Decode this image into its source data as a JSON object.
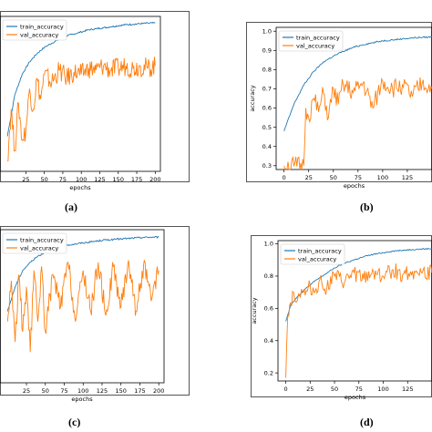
{
  "colors": {
    "train": "#1f77b4",
    "val": "#ff7f0e"
  },
  "chart_data": [
    {
      "type": "line",
      "caption": "(a)",
      "xlabel": "epochs",
      "ylabel": "",
      "xticks": [
        25,
        50,
        75,
        100,
        125,
        150,
        175,
        200
      ],
      "yticks": [],
      "legend": "top-left",
      "series": [
        {
          "name": "train_accuracy",
          "x": [
            0,
            10,
            20,
            30,
            40,
            50,
            60,
            70,
            80,
            90,
            100,
            110,
            120,
            130,
            140,
            150,
            160,
            170,
            180,
            190,
            200
          ],
          "values": [
            0.42,
            0.62,
            0.72,
            0.78,
            0.82,
            0.85,
            0.87,
            0.89,
            0.905,
            0.915,
            0.925,
            0.935,
            0.94,
            0.945,
            0.95,
            0.955,
            0.96,
            0.962,
            0.965,
            0.967,
            0.968
          ]
        },
        {
          "name": "val_accuracy",
          "x": [
            0,
            5,
            10,
            15,
            20,
            25,
            30,
            35,
            40,
            45,
            50,
            60,
            70,
            80,
            90,
            100,
            110,
            120,
            130,
            140,
            150,
            160,
            170,
            180,
            190,
            200
          ],
          "values": [
            0.3,
            0.55,
            0.35,
            0.58,
            0.4,
            0.45,
            0.65,
            0.55,
            0.7,
            0.6,
            0.72,
            0.68,
            0.74,
            0.7,
            0.73,
            0.72,
            0.75,
            0.74,
            0.76,
            0.74,
            0.75,
            0.76,
            0.75,
            0.76,
            0.75,
            0.76
          ]
        }
      ]
    },
    {
      "type": "line",
      "caption": "(b)",
      "xlabel": "epochs",
      "ylabel": "accuracy",
      "xticks": [
        0,
        25,
        50,
        75,
        100,
        125
      ],
      "yticks": [
        0.3,
        0.4,
        0.5,
        0.6,
        0.7,
        0.8,
        0.9,
        1.0
      ],
      "ylim": [
        0.28,
        1.02
      ],
      "legend": "top-left",
      "series": [
        {
          "name": "train_accuracy",
          "x": [
            0,
            10,
            20,
            30,
            40,
            50,
            60,
            70,
            80,
            90,
            100,
            110,
            120,
            130,
            140,
            150
          ],
          "values": [
            0.48,
            0.62,
            0.72,
            0.79,
            0.84,
            0.87,
            0.895,
            0.915,
            0.93,
            0.94,
            0.95,
            0.955,
            0.96,
            0.965,
            0.968,
            0.97
          ]
        },
        {
          "name": "val_accuracy",
          "x": [
            0,
            10,
            20,
            22,
            25,
            30,
            35,
            40,
            45,
            50,
            55,
            60,
            70,
            80,
            90,
            100,
            110,
            120,
            130,
            140,
            150
          ],
          "values": [
            0.3,
            0.3,
            0.3,
            0.6,
            0.55,
            0.65,
            0.58,
            0.68,
            0.55,
            0.7,
            0.62,
            0.72,
            0.68,
            0.73,
            0.6,
            0.74,
            0.7,
            0.72,
            0.66,
            0.73,
            0.7
          ]
        }
      ]
    },
    {
      "type": "line",
      "caption": "(c)",
      "xlabel": "epochs",
      "ylabel": "",
      "xticks": [
        25,
        50,
        75,
        100,
        125,
        150,
        175,
        200
      ],
      "yticks": [],
      "legend": "top-left",
      "series": [
        {
          "name": "train_accuracy",
          "x": [
            0,
            10,
            20,
            30,
            40,
            50,
            60,
            70,
            80,
            90,
            100,
            110,
            120,
            130,
            140,
            150,
            160,
            170,
            180,
            190,
            200
          ],
          "values": [
            0.6,
            0.72,
            0.8,
            0.84,
            0.87,
            0.89,
            0.905,
            0.915,
            0.925,
            0.93,
            0.935,
            0.94,
            0.945,
            0.95,
            0.952,
            0.955,
            0.957,
            0.96,
            0.962,
            0.963,
            0.964
          ]
        },
        {
          "name": "val_accuracy",
          "x": [
            0,
            5,
            10,
            15,
            20,
            25,
            30,
            35,
            40,
            45,
            50,
            60,
            70,
            80,
            90,
            100,
            110,
            120,
            130,
            140,
            150,
            160,
            170,
            180,
            190,
            200
          ],
          "values": [
            0.55,
            0.75,
            0.45,
            0.78,
            0.5,
            0.72,
            0.4,
            0.8,
            0.55,
            0.82,
            0.5,
            0.78,
            0.62,
            0.84,
            0.55,
            0.8,
            0.6,
            0.84,
            0.58,
            0.82,
            0.62,
            0.85,
            0.6,
            0.83,
            0.65,
            0.8
          ]
        }
      ]
    },
    {
      "type": "line",
      "caption": "(d)",
      "xlabel": "epochs",
      "ylabel": "accuracy",
      "xticks": [
        0,
        25,
        50,
        75,
        100,
        125
      ],
      "yticks": [
        0.2,
        0.4,
        0.6,
        0.8,
        1.0
      ],
      "ylim": [
        0.15,
        1.02
      ],
      "legend": "top-left",
      "series": [
        {
          "name": "train_accuracy",
          "x": [
            0,
            5,
            10,
            20,
            30,
            40,
            50,
            60,
            70,
            80,
            90,
            100,
            110,
            120,
            130,
            140,
            150
          ],
          "values": [
            0.52,
            0.62,
            0.66,
            0.72,
            0.77,
            0.81,
            0.85,
            0.88,
            0.9,
            0.92,
            0.935,
            0.945,
            0.955,
            0.96,
            0.965,
            0.968,
            0.97
          ]
        },
        {
          "name": "val_accuracy",
          "x": [
            0,
            2,
            4,
            8,
            12,
            16,
            20,
            25,
            30,
            35,
            40,
            50,
            60,
            70,
            80,
            90,
            100,
            110,
            120,
            130,
            140,
            150
          ],
          "values": [
            0.17,
            0.55,
            0.62,
            0.7,
            0.65,
            0.72,
            0.68,
            0.74,
            0.7,
            0.78,
            0.72,
            0.8,
            0.76,
            0.82,
            0.78,
            0.83,
            0.8,
            0.84,
            0.81,
            0.83,
            0.82,
            0.82
          ]
        }
      ]
    }
  ]
}
